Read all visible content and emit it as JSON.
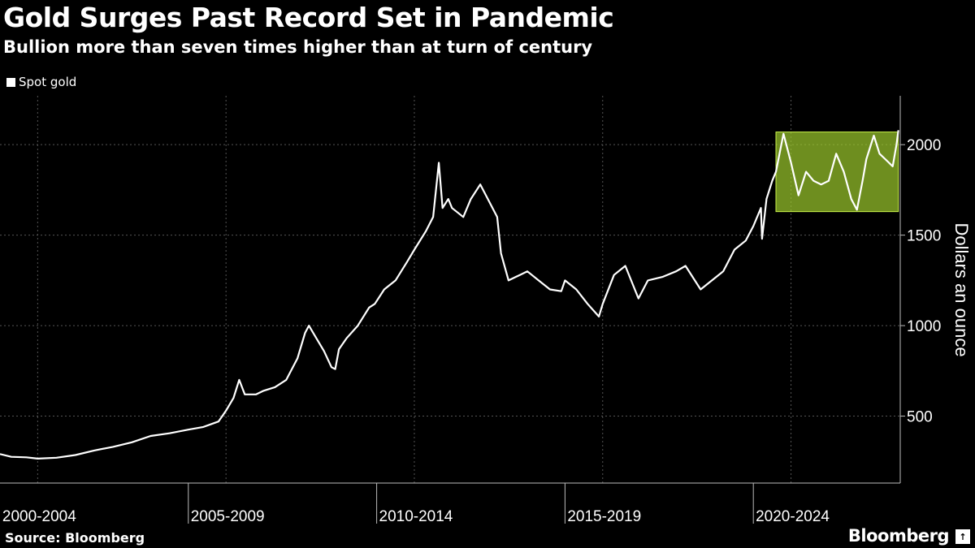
{
  "header": {
    "title": "Gold Surges Past Record Set in Pandemic",
    "subtitle": "Bullion more than seven times higher than at turn of century"
  },
  "footer": {
    "source": "Source: Bloomberg",
    "brand": "Bloomberg",
    "brand_mark": "↑"
  },
  "colors": {
    "background": "#000000",
    "line": "#ffffff",
    "highlight_fill": "#9ccb2c",
    "highlight_stroke": "#c8f04a",
    "grid": "#555555"
  },
  "chart_data": {
    "type": "line",
    "title": "Gold Surges Past Record Set in Pandemic",
    "subtitle": "Bullion more than seven times higher than at turn of century",
    "legend": [
      "Spot gold"
    ],
    "legend_position": "top-left",
    "ylabel": "Dollars an ounce",
    "yaxis_side": "right",
    "ylim": [
      130,
      2270
    ],
    "yticks": [
      500,
      1000,
      1500,
      2000
    ],
    "xlim": [
      2000.0,
      2023.9
    ],
    "xticks": [
      2001.0,
      2006.0,
      2011.0,
      2016.0,
      2021.0
    ],
    "x_tick_labels": [
      "2000-2004",
      "2005-2009",
      "2010-2014",
      "2015-2019",
      "2020-2024"
    ],
    "x_separators": [
      2005.0,
      2010.0,
      2015.0,
      2020.0
    ],
    "grid": true,
    "highlight": {
      "x": [
        2020.6,
        2023.85
      ],
      "y": [
        1630,
        2070
      ]
    },
    "series": [
      {
        "name": "Spot gold",
        "x": [
          2000.0,
          2000.3,
          2000.7,
          2001.0,
          2001.5,
          2002.0,
          2002.5,
          2003.0,
          2003.5,
          2004.0,
          2004.5,
          2005.0,
          2005.4,
          2005.8,
          2006.0,
          2006.2,
          2006.35,
          2006.5,
          2006.8,
          2007.0,
          2007.3,
          2007.6,
          2007.9,
          2008.1,
          2008.2,
          2008.4,
          2008.6,
          2008.8,
          2008.9,
          2009.0,
          2009.2,
          2009.5,
          2009.8,
          2009.95,
          2010.2,
          2010.5,
          2010.8,
          2011.0,
          2011.3,
          2011.5,
          2011.65,
          2011.75,
          2011.9,
          2012.0,
          2012.3,
          2012.5,
          2012.75,
          2013.0,
          2013.2,
          2013.3,
          2013.5,
          2013.8,
          2014.0,
          2014.3,
          2014.6,
          2014.9,
          2015.0,
          2015.3,
          2015.6,
          2015.9,
          2016.0,
          2016.3,
          2016.6,
          2016.95,
          2017.2,
          2017.6,
          2017.95,
          2018.2,
          2018.6,
          2018.9,
          2019.2,
          2019.5,
          2019.8,
          2020.0,
          2020.2,
          2020.23,
          2020.35,
          2020.5,
          2020.6,
          2020.8,
          2021.0,
          2021.2,
          2021.4,
          2021.6,
          2021.8,
          2022.0,
          2022.2,
          2022.4,
          2022.6,
          2022.75,
          2022.9,
          2023.0,
          2023.2,
          2023.35,
          2023.5,
          2023.7,
          2023.8,
          2023.85
        ],
        "values": [
          290,
          275,
          272,
          265,
          270,
          285,
          310,
          330,
          355,
          390,
          405,
          425,
          440,
          470,
          530,
          600,
          700,
          620,
          620,
          640,
          660,
          700,
          820,
          960,
          1000,
          930,
          860,
          770,
          760,
          870,
          930,
          1000,
          1100,
          1120,
          1200,
          1250,
          1350,
          1420,
          1520,
          1600,
          1900,
          1650,
          1700,
          1650,
          1600,
          1700,
          1780,
          1680,
          1600,
          1400,
          1250,
          1280,
          1300,
          1250,
          1200,
          1190,
          1250,
          1200,
          1120,
          1050,
          1120,
          1280,
          1330,
          1150,
          1250,
          1270,
          1300,
          1330,
          1200,
          1250,
          1300,
          1420,
          1470,
          1550,
          1650,
          1480,
          1700,
          1800,
          1850,
          2060,
          1900,
          1720,
          1850,
          1800,
          1780,
          1800,
          1950,
          1850,
          1700,
          1640,
          1800,
          1920,
          2050,
          1950,
          1920,
          1880,
          2000,
          2080
        ]
      }
    ]
  }
}
